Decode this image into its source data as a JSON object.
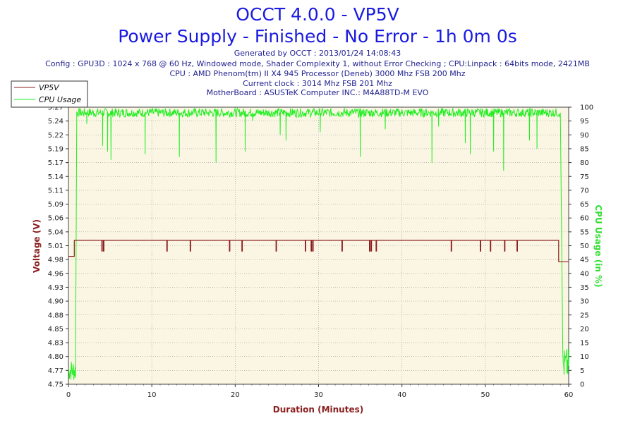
{
  "title": "OCCT 4.0.0 - VP5V",
  "subtitle": "Power Supply - Finished - No Error - 1h 0m 0s",
  "info_lines": [
    "Generated by OCCT : 2013/01/24 14:08:43",
    "Config : GPU3D : 1024 x 768 @ 60 Hz, Windowed mode, Shader Complexity 1, without Error Checking ; CPU:Linpack : 64bits mode, 2421MB",
    "CPU : AMD Phenom(tm) II X4 945 Processor (Deneb) 3000 Mhz FSB 200 Mhz",
    "Current clock : 3014 Mhz FSB 201 Mhz",
    "MotherBoard : ASUSTeK Computer INC.: M4A88TD-M EVO"
  ],
  "colors": {
    "voltage": "#8b1f1f",
    "cpu": "#22ee22",
    "plot_bg": "#fbf6e4",
    "grid": "#9a9a9a"
  },
  "chart_data": {
    "type": "line",
    "xlabel": "Duration (Minutes)",
    "ylabel": "Voltage (V)",
    "y2label": "CPU Usage (in %)",
    "xlim": [
      0,
      60
    ],
    "ylim": [
      4.75,
      5.27
    ],
    "y2lim": [
      0,
      100
    ],
    "x_ticks": [
      "0",
      "10",
      "20",
      "30",
      "40",
      "50",
      "60"
    ],
    "x_tick_values": [
      0,
      10,
      20,
      30,
      40,
      50,
      60
    ],
    "y_ticks": [
      "4.75",
      "4.77",
      "4.80",
      "4.83",
      "4.85",
      "4.88",
      "4.90",
      "4.93",
      "4.96",
      "4.98",
      "5.01",
      "5.04",
      "5.06",
      "5.09",
      "5.11",
      "5.14",
      "5.17",
      "5.19",
      "5.22",
      "5.24",
      "5.27"
    ],
    "y2_ticks": [
      "0",
      "5",
      "10",
      "15",
      "20",
      "25",
      "30",
      "35",
      "40",
      "45",
      "50",
      "55",
      "60",
      "65",
      "70",
      "75",
      "80",
      "85",
      "90",
      "95",
      "100"
    ],
    "grid": true,
    "legend_position": "top-left",
    "series": [
      {
        "name": "VP5V",
        "axis": "left",
        "base_value": 5.02,
        "start_point": [
          0,
          4.99
        ],
        "end_point": [
          60,
          4.98
        ],
        "drops_to": 5.0,
        "drop_x": [
          0.7,
          4.0,
          4.2,
          11.8,
          14.6,
          19.3,
          20.8,
          24.9,
          28.4,
          29.1,
          29.3,
          32.8,
          36.1,
          36.3,
          36.9,
          45.9,
          49.4,
          50.6,
          52.3,
          53.8,
          58.8
        ]
      },
      {
        "name": "CPU Usage",
        "axis": "right",
        "idle_start": {
          "x": [
            0,
            0.9
          ],
          "value": 5
        },
        "load_start_x": 1.0,
        "load_end_x": 59.0,
        "load_value": 98,
        "idle_end": {
          "x": [
            59.3,
            60
          ],
          "value": 7
        },
        "dips": [
          {
            "x": 2.2,
            "value": 94
          },
          {
            "x": 4.1,
            "value": 86
          },
          {
            "x": 4.7,
            "value": 84
          },
          {
            "x": 5.1,
            "value": 81
          },
          {
            "x": 9.2,
            "value": 83
          },
          {
            "x": 13.3,
            "value": 82
          },
          {
            "x": 17.7,
            "value": 80
          },
          {
            "x": 21.2,
            "value": 84
          },
          {
            "x": 22.1,
            "value": 95
          },
          {
            "x": 25.4,
            "value": 90
          },
          {
            "x": 26.1,
            "value": 88
          },
          {
            "x": 30.2,
            "value": 91
          },
          {
            "x": 35.0,
            "value": 82
          },
          {
            "x": 38.0,
            "value": 92
          },
          {
            "x": 43.6,
            "value": 80
          },
          {
            "x": 44.4,
            "value": 93
          },
          {
            "x": 47.6,
            "value": 87
          },
          {
            "x": 48.2,
            "value": 83
          },
          {
            "x": 51.0,
            "value": 84
          },
          {
            "x": 52.2,
            "value": 77
          },
          {
            "x": 55.3,
            "value": 88
          },
          {
            "x": 56.2,
            "value": 85
          }
        ]
      }
    ]
  }
}
